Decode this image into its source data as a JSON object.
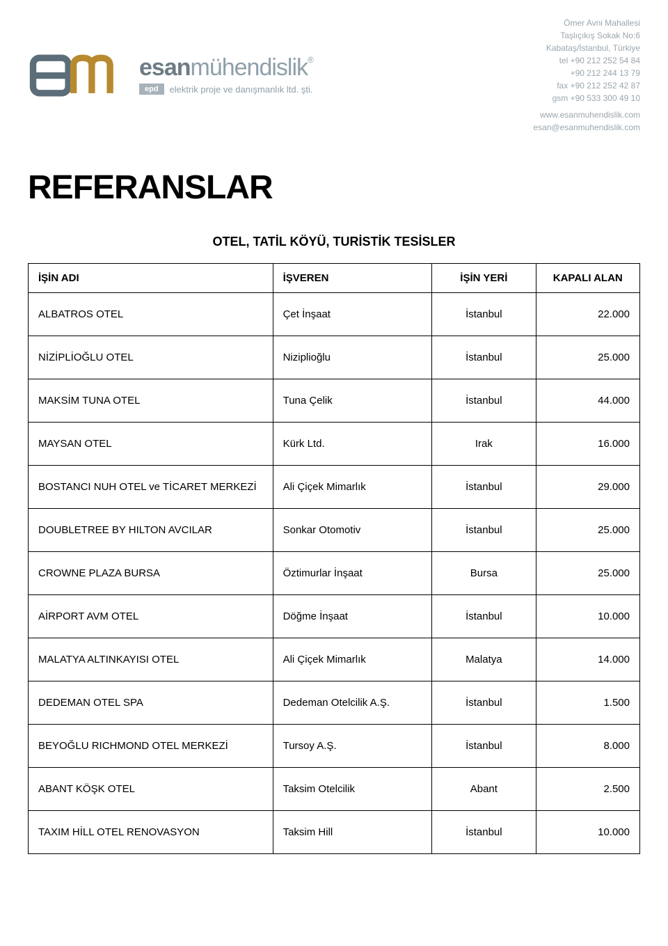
{
  "letterhead": {
    "logo": {
      "glyph_color": "#b88a2f",
      "bar_color": "#5b6d78",
      "accent_color": "#b88a2f"
    },
    "brand": {
      "bold": "esan",
      "light": "mühendislik",
      "reg": "®",
      "epd": "epd",
      "tagline": "elektrik proje ve danışmanlık ltd. şti."
    },
    "address": {
      "l1": "Ömer Avni Mahallesi",
      "l2": "Taşlıçıkış Sokak No:6",
      "l3": "Kabataş/İstanbul, Türkiye",
      "l4": "tel +90 212 252 54 84",
      "l5": "+90 212 244 13 79",
      "l6": "fax +90 212 252 42 87",
      "l7": "gsm +90 533 300 49 10",
      "l8": "www.esanmuhendislik.com",
      "l9": "esan@esanmuhendislik.com"
    }
  },
  "title": "REFERANSLAR",
  "table": {
    "category": "OTEL, TATİL KÖYÜ, TURİSTİK TESİSLER",
    "headers": {
      "name": "İŞİN ADI",
      "employer": "İŞVEREN",
      "location": "İŞİN YERİ",
      "area": "KAPALI ALAN"
    },
    "rows": [
      {
        "name": "ALBATROS OTEL",
        "employer": "Çet İnşaat",
        "location": "İstanbul",
        "area": "22.000"
      },
      {
        "name": "NİZİPLİOĞLU OTEL",
        "employer": "Niziplioğlu",
        "location": "İstanbul",
        "area": "25.000"
      },
      {
        "name": "MAKSİM TUNA OTEL",
        "employer": "Tuna Çelik",
        "location": "İstanbul",
        "area": "44.000"
      },
      {
        "name": "MAYSAN OTEL",
        "employer": "Kürk Ltd.",
        "location": "Irak",
        "area": "16.000"
      },
      {
        "name": "BOSTANCI NUH OTEL ve TİCARET MERKEZİ",
        "employer": "Ali Çiçek Mimarlık",
        "location": "İstanbul",
        "area": "29.000"
      },
      {
        "name": "DOUBLETREE BY HILTON AVCILAR",
        "employer": "Sonkar Otomotiv",
        "location": "İstanbul",
        "area": "25.000"
      },
      {
        "name": "CROWNE PLAZA BURSA",
        "employer": "Öztimurlar İnşaat",
        "location": "Bursa",
        "area": "25.000"
      },
      {
        "name": "AİRPORT AVM OTEL",
        "employer": "Döğme İnşaat",
        "location": "İstanbul",
        "area": "10.000"
      },
      {
        "name": "MALATYA ALTINKAYISI OTEL",
        "employer": "Ali Çiçek Mimarlık",
        "location": "Malatya",
        "area": "14.000"
      },
      {
        "name": "DEDEMAN OTEL SPA",
        "employer": "Dedeman Otelcilik A.Ş.",
        "location": "İstanbul",
        "area": "1.500"
      },
      {
        "name": "BEYOĞLU RICHMOND OTEL MERKEZİ",
        "employer": "Tursoy A.Ş.",
        "location": "İstanbul",
        "area": "8.000"
      },
      {
        "name": "ABANT KÖŞK OTEL",
        "employer": "Taksim Otelcilik",
        "location": "Abant",
        "area": "2.500"
      },
      {
        "name": "TAXIM HİLL OTEL RENOVASYON",
        "employer": "Taksim Hill",
        "location": "İstanbul",
        "area": "10.000"
      }
    ]
  },
  "styles": {
    "page_bg": "#ffffff",
    "text_color": "#000000",
    "border_color": "#000000",
    "address_text_color": "#9aa6ad",
    "brand_bold_color": "#6d7b84",
    "brand_light_color": "#8ea0aa",
    "epd_bg": "#a7b2b9",
    "title_fontsize": 48,
    "row_fontsize": 15,
    "header_fontsize": 15,
    "category_fontsize": 18
  }
}
